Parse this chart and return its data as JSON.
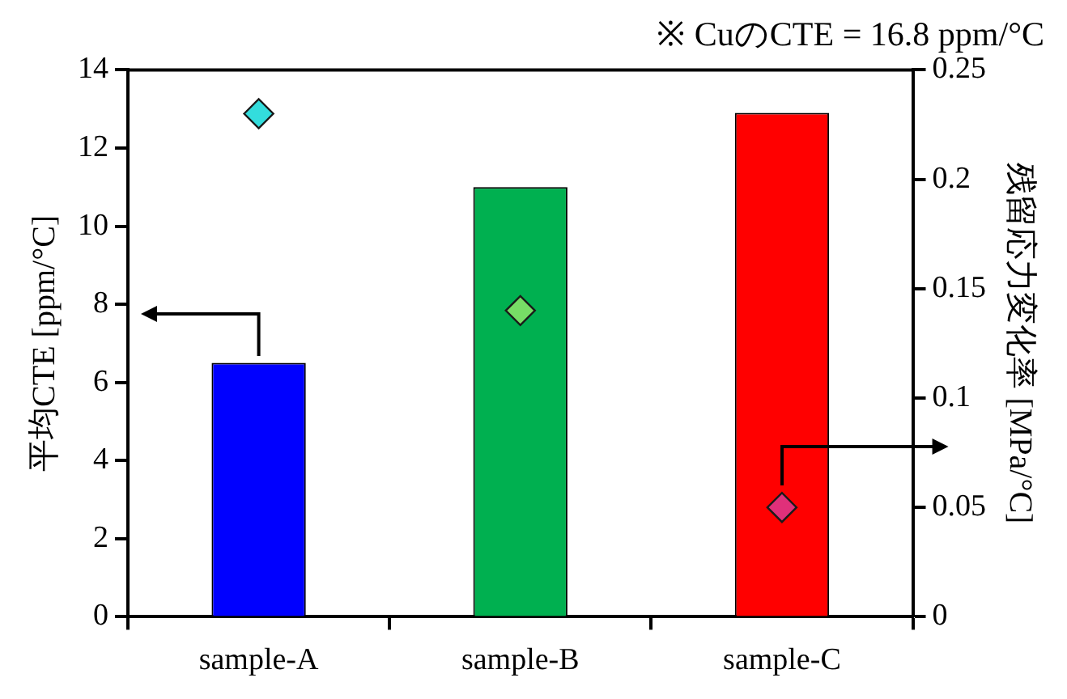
{
  "chart_data": {
    "type": "bar",
    "title": "※ CuのCTE = 16.8 ppm/°C",
    "ylabel": "平均CTE [ppm/°C]",
    "y2label": "残留応力変化率 [MPa/°C]",
    "categories": [
      "sample-A",
      "sample-B",
      "sample-C"
    ],
    "series": [
      {
        "colors": [
          "#0000ff",
          "#00b050",
          "#ff0000"
        ],
        "values": [
          6.5,
          11.0,
          12.9
        ]
      },
      {
        "type": "scatter",
        "axis": "y2",
        "marker": "diamond",
        "x": [
          "sample-A",
          "sample-B",
          "sample-C"
        ],
        "colors": [
          "#33dddd",
          "#77dd66",
          "#e0307a"
        ],
        "values": [
          0.23,
          0.14,
          0.05
        ]
      }
    ],
    "ylim": [
      0,
      14
    ],
    "yticks": [
      0,
      2,
      4,
      6,
      8,
      10,
      12,
      14
    ],
    "y2lim": [
      0,
      0.25
    ],
    "y2ticks": [
      0,
      0.05,
      0.1,
      0.15,
      0.2,
      0.25
    ]
  }
}
